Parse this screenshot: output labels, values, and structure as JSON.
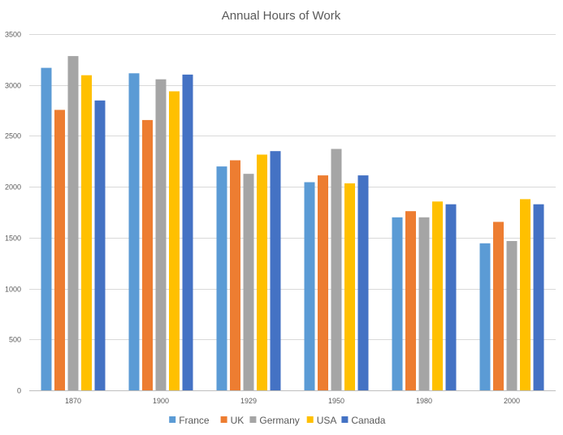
{
  "chart_data": {
    "type": "bar",
    "title": "Annual Hours of Work",
    "categories": [
      "1870",
      "1900",
      "1929",
      "1950",
      "1980",
      "2000"
    ],
    "series": [
      {
        "name": "France",
        "color": "#5B9BD5",
        "values": [
          3168,
          3115,
          2200,
          2045,
          1700,
          1445
        ]
      },
      {
        "name": "UK",
        "color": "#ED7D31",
        "values": [
          2755,
          2656,
          2260,
          2112,
          1760,
          1655
        ]
      },
      {
        "name": "Germany",
        "color": "#A5A5A5",
        "values": [
          3284,
          3056,
          2127,
          2372,
          1700,
          1467
        ]
      },
      {
        "name": "USA",
        "color": "#FFC000",
        "values": [
          3096,
          2938,
          2316,
          2034,
          1855,
          1878
        ]
      },
      {
        "name": "Canada",
        "color": "#4472C4",
        "values": [
          2848,
          3102,
          2350,
          2112,
          1828,
          1828
        ]
      }
    ],
    "ylim": [
      0,
      3500
    ],
    "yticks": [
      0,
      500,
      1000,
      1500,
      2000,
      2500,
      3000,
      3500
    ],
    "grid": true,
    "legend": "bottom"
  }
}
